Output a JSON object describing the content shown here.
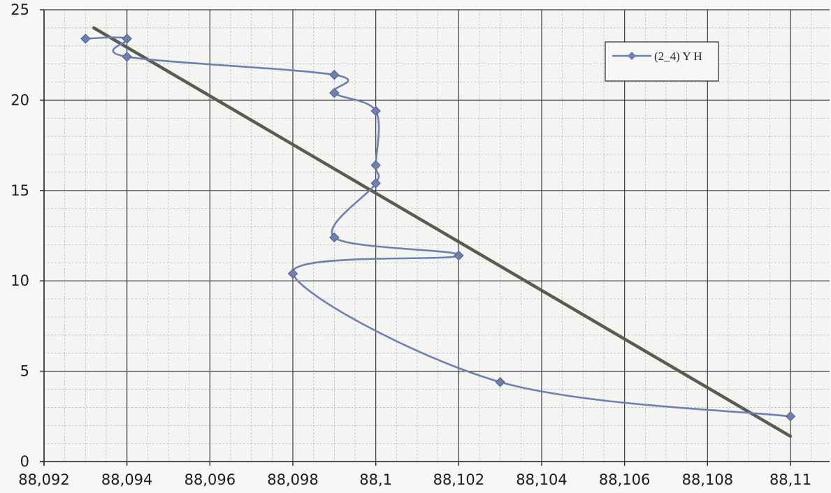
{
  "chart_data": {
    "type": "scatter",
    "title": "",
    "xlabel": "",
    "ylabel": "",
    "xlim": [
      88.092,
      88.11
    ],
    "ylim": [
      0,
      25
    ],
    "x_ticks": [
      {
        "value": 88.092,
        "label": "88,092"
      },
      {
        "value": 88.094,
        "label": "88,094"
      },
      {
        "value": 88.096,
        "label": "88,096"
      },
      {
        "value": 88.098,
        "label": "88,098"
      },
      {
        "value": 88.1,
        "label": "88,1"
      },
      {
        "value": 88.102,
        "label": "88,102"
      },
      {
        "value": 88.104,
        "label": "88,104"
      },
      {
        "value": 88.106,
        "label": "88,106"
      },
      {
        "value": 88.108,
        "label": "88,108"
      },
      {
        "value": 88.11,
        "label": "88,11"
      }
    ],
    "y_ticks": [
      {
        "value": 0,
        "label": "0"
      },
      {
        "value": 5,
        "label": "5"
      },
      {
        "value": 10,
        "label": "10"
      },
      {
        "value": 15,
        "label": "15"
      },
      {
        "value": 20,
        "label": "20"
      },
      {
        "value": 25,
        "label": "25"
      }
    ],
    "grid": true,
    "minor_grid": true,
    "legend": {
      "position": "top-right"
    },
    "series": [
      {
        "name": "(2_4) Y H",
        "color": "#6f7fb0",
        "marker": "diamond",
        "smooth": true,
        "points": [
          {
            "x": 88.11,
            "y": 2.5
          },
          {
            "x": 88.103,
            "y": 4.4
          },
          {
            "x": 88.098,
            "y": 10.4
          },
          {
            "x": 88.102,
            "y": 11.4
          },
          {
            "x": 88.099,
            "y": 12.4
          },
          {
            "x": 88.1,
            "y": 15.4
          },
          {
            "x": 88.1,
            "y": 16.4
          },
          {
            "x": 88.1,
            "y": 19.4
          },
          {
            "x": 88.099,
            "y": 20.4
          },
          {
            "x": 88.099,
            "y": 21.4
          },
          {
            "x": 88.094,
            "y": 22.4
          },
          {
            "x": 88.094,
            "y": 23.4
          },
          {
            "x": 88.093,
            "y": 23.4
          }
        ]
      },
      {
        "color": "#5b5b55",
        "type": "line",
        "points": [
          {
            "x": 88.0932,
            "y": 24.0
          },
          {
            "x": 88.11,
            "y": 1.4
          }
        ]
      }
    ]
  }
}
